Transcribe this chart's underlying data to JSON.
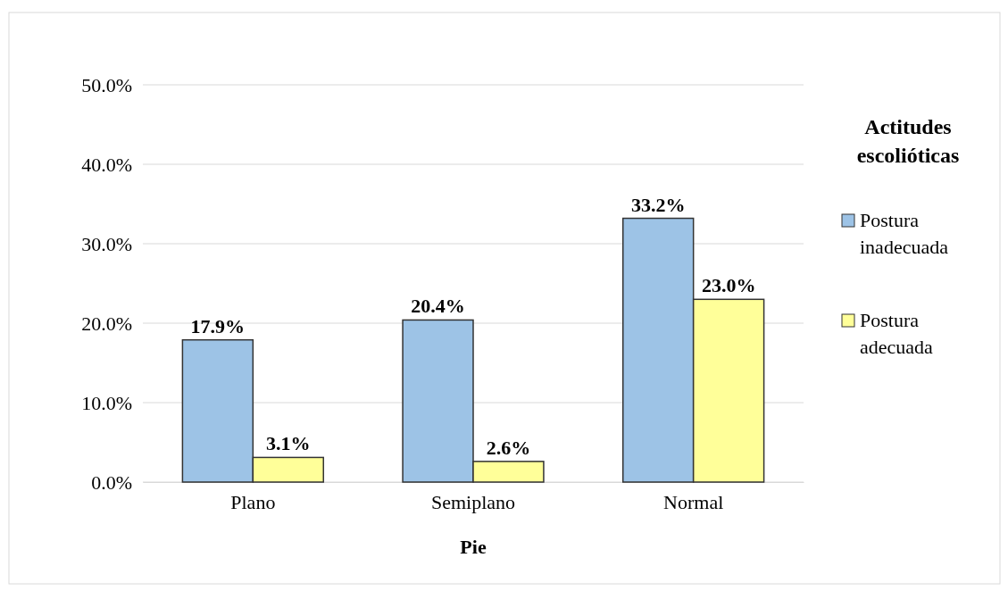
{
  "chart_data": {
    "type": "bar",
    "xlabel": "Pie",
    "legend_title": "Actitudes escolióticas",
    "categories": [
      "Plano",
      "Semiplano",
      "Normal"
    ],
    "series": [
      {
        "name": "Postura inadecuada",
        "color": "#9dc3e6",
        "values": [
          17.9,
          20.4,
          33.2
        ],
        "value_labels": [
          "17.9%",
          "20.4%",
          "33.2%"
        ]
      },
      {
        "name": "Postura adecuada",
        "color": "#ffff99",
        "values": [
          3.1,
          2.6,
          23.0
        ],
        "value_labels": [
          "3.1%",
          "2.6%",
          "23.0%"
        ]
      }
    ],
    "ylim": [
      0,
      50
    ],
    "yticks": [
      {
        "value": 0,
        "label": "0.0%"
      },
      {
        "value": 10,
        "label": "10.0%"
      },
      {
        "value": 20,
        "label": "20.0%"
      },
      {
        "value": 30,
        "label": "30.0%"
      },
      {
        "value": 40,
        "label": "40.0%"
      },
      {
        "value": 50,
        "label": "50.0%"
      }
    ],
    "grid": "y",
    "legend": "right"
  }
}
